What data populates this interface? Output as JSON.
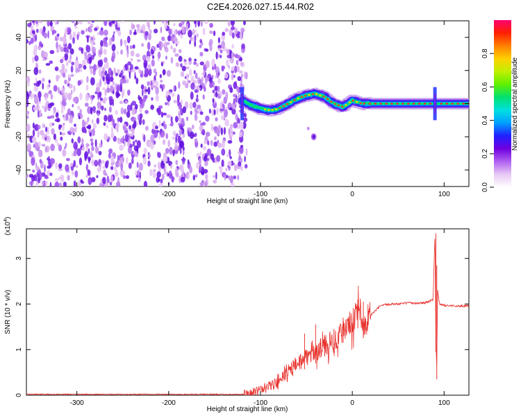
{
  "title": "C2E4.2026.027.15.44.R02",
  "colors": {
    "line": "#e8322e",
    "axis": "#000000",
    "cmap": [
      "#ffffff",
      "#e2b8f0",
      "#a033f0",
      "#6a0de0",
      "#2020ff",
      "#00a0ff",
      "#00e0e0",
      "#00e040",
      "#a0f000",
      "#ffe000",
      "#ff9000",
      "#ff2000",
      "#ff0060"
    ]
  },
  "chart_data": [
    {
      "type": "heatmap",
      "title": "C2E4.2026.027.15.44.R02",
      "xlabel": "Height of straight line (km)",
      "ylabel": "Frequency (Hz)",
      "xlim": [
        -355,
        127
      ],
      "ylim": [
        -50,
        50
      ],
      "xticks": [
        "-300",
        "-200",
        "-100",
        "0",
        "100"
      ],
      "yticks": [
        "-40",
        "-20",
        "0",
        "20",
        "40"
      ],
      "colorbar": {
        "label": "Normalized spectral amplitude",
        "range": [
          0,
          1
        ],
        "ticks": [
          "0.0",
          "0.2",
          "0.4",
          "0.6",
          "0.8"
        ]
      },
      "features": {
        "noise_region_x": [
          -355,
          -118
        ],
        "ridge": {
          "x": [
            -120,
            -110,
            -100,
            -90,
            -80,
            -70,
            -60,
            -50,
            -40,
            -30,
            -20,
            -10,
            0,
            10,
            20,
            40,
            60,
            80,
            90,
            100,
            127
          ],
          "y": [
            2,
            -1,
            -3,
            -4,
            -3,
            0,
            3,
            5,
            6,
            4,
            0,
            -2,
            2,
            0,
            0,
            0,
            0,
            0,
            0,
            0,
            0
          ]
        },
        "spikes_x": [
          -120,
          90
        ],
        "blob": {
          "x": -42,
          "y": -20
        }
      }
    },
    {
      "type": "line",
      "xlabel": "Height of straight line (km)",
      "ylabel": "SNR (10 * v/v)",
      "ymultiplier": "(x10",
      "ymultiplier_exp": "4",
      "ymultiplier_close": ")",
      "xlim": [
        -355,
        127
      ],
      "ylim": [
        0,
        3.65
      ],
      "xticks": [
        "-300",
        "-200",
        "-100",
        "0",
        "100"
      ],
      "yticks": [
        "0",
        "1",
        "2",
        "3"
      ],
      "series": [
        {
          "x": [
            -355,
            -120,
            -110,
            -100,
            -90,
            -80,
            -70,
            -60,
            -50,
            -40,
            -30,
            -20,
            -10,
            0,
            5,
            10,
            12,
            20,
            30,
            40,
            50,
            60,
            70,
            80,
            88,
            90,
            91,
            92,
            93,
            95,
            100,
            110,
            127
          ],
          "y": [
            0.02,
            0.02,
            0.05,
            0.12,
            0.2,
            0.3,
            0.5,
            0.7,
            0.85,
            0.95,
            1.1,
            1.2,
            1.4,
            1.6,
            1.7,
            1.8,
            1.5,
            1.75,
            1.95,
            2.0,
            2.0,
            2.02,
            2.02,
            2.03,
            2.1,
            3.55,
            1.2,
            0.6,
            2.3,
            2.0,
            1.97,
            1.96,
            1.95
          ]
        }
      ],
      "spikes": [
        {
          "x": -52,
          "y": 1.35
        },
        {
          "x": -40,
          "y": 1.55
        },
        {
          "x": -30,
          "y": 1.25
        },
        {
          "x": -20,
          "y": 1.45
        },
        {
          "x": -10,
          "y": 1.7
        },
        {
          "x": 6,
          "y": 2.1
        },
        {
          "x": 12,
          "y": 2.05
        },
        {
          "x": 91,
          "y": 3.55
        },
        {
          "x": 92,
          "y": 2.85
        }
      ]
    }
  ]
}
